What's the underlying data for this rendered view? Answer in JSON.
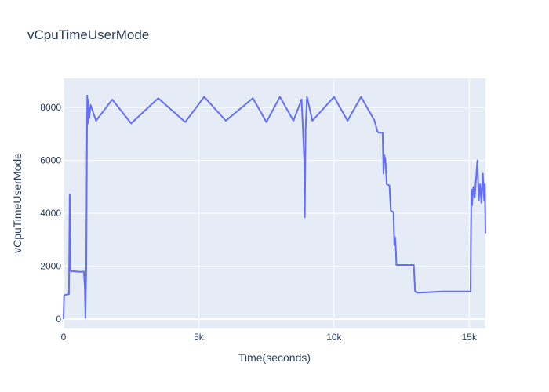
{
  "chart_data": {
    "type": "line",
    "title": "vCpuTimeUserMode",
    "xlabel": "Time(seconds)",
    "ylabel": "vCpuTimeUserMode",
    "xlim": [
      0,
      15600
    ],
    "ylim": [
      -350,
      9100
    ],
    "x_ticks": [
      {
        "value": 0,
        "label": "0"
      },
      {
        "value": 5000,
        "label": "5k"
      },
      {
        "value": 10000,
        "label": "10k"
      },
      {
        "value": 15000,
        "label": "15k"
      }
    ],
    "y_ticks": [
      {
        "value": 0,
        "label": "0"
      },
      {
        "value": 2000,
        "label": "2000"
      },
      {
        "value": 4000,
        "label": "4000"
      },
      {
        "value": 6000,
        "label": "6000"
      },
      {
        "value": 8000,
        "label": "8000"
      }
    ],
    "grid": true,
    "colors": {
      "line": "#636efa",
      "plot_bg": "#e5ecf6",
      "grid": "#ffffff"
    },
    "series": [
      {
        "x": [
          0,
          20,
          60,
          200,
          230,
          250,
          280,
          300,
          600,
          750,
          790,
          810,
          840,
          860,
          870,
          880,
          900,
          920,
          950,
          1000,
          1200,
          1800,
          2500,
          3500,
          4500,
          5200,
          6000,
          7000,
          7500,
          8000,
          8500,
          8800,
          8850,
          8900,
          8920,
          8950,
          9000,
          9200,
          10000,
          10500,
          11000,
          11500,
          11600,
          11650,
          11800,
          11830,
          11860,
          11900,
          11950,
          12050,
          12100,
          12200,
          12230,
          12260,
          12290,
          12310,
          12500,
          12800,
          12950,
          13000,
          13020,
          13100,
          14000,
          15050,
          15060,
          15080,
          15100,
          15150,
          15200,
          15300,
          15350,
          15400,
          15450,
          15500,
          15550,
          15580,
          15600
        ],
        "y": [
          0,
          900,
          920,
          950,
          4700,
          1850,
          1800,
          1820,
          1790,
          1800,
          1200,
          50,
          2000,
          6000,
          7500,
          8450,
          7400,
          8300,
          7600,
          8100,
          7500,
          8300,
          7400,
          8350,
          7450,
          8400,
          7500,
          8350,
          7450,
          8400,
          7500,
          8300,
          7200,
          6000,
          3850,
          7200,
          8400,
          7500,
          8400,
          7500,
          8400,
          7500,
          7100,
          7050,
          7050,
          5500,
          6200,
          6050,
          5100,
          5050,
          4100,
          4050,
          2800,
          3100,
          2600,
          2050,
          2050,
          2050,
          2050,
          1050,
          1050,
          1000,
          1050,
          1050,
          2800,
          4900,
          4300,
          5000,
          4600,
          6000,
          4500,
          5100,
          4400,
          5500,
          4500,
          5100,
          3250
        ]
      }
    ]
  }
}
